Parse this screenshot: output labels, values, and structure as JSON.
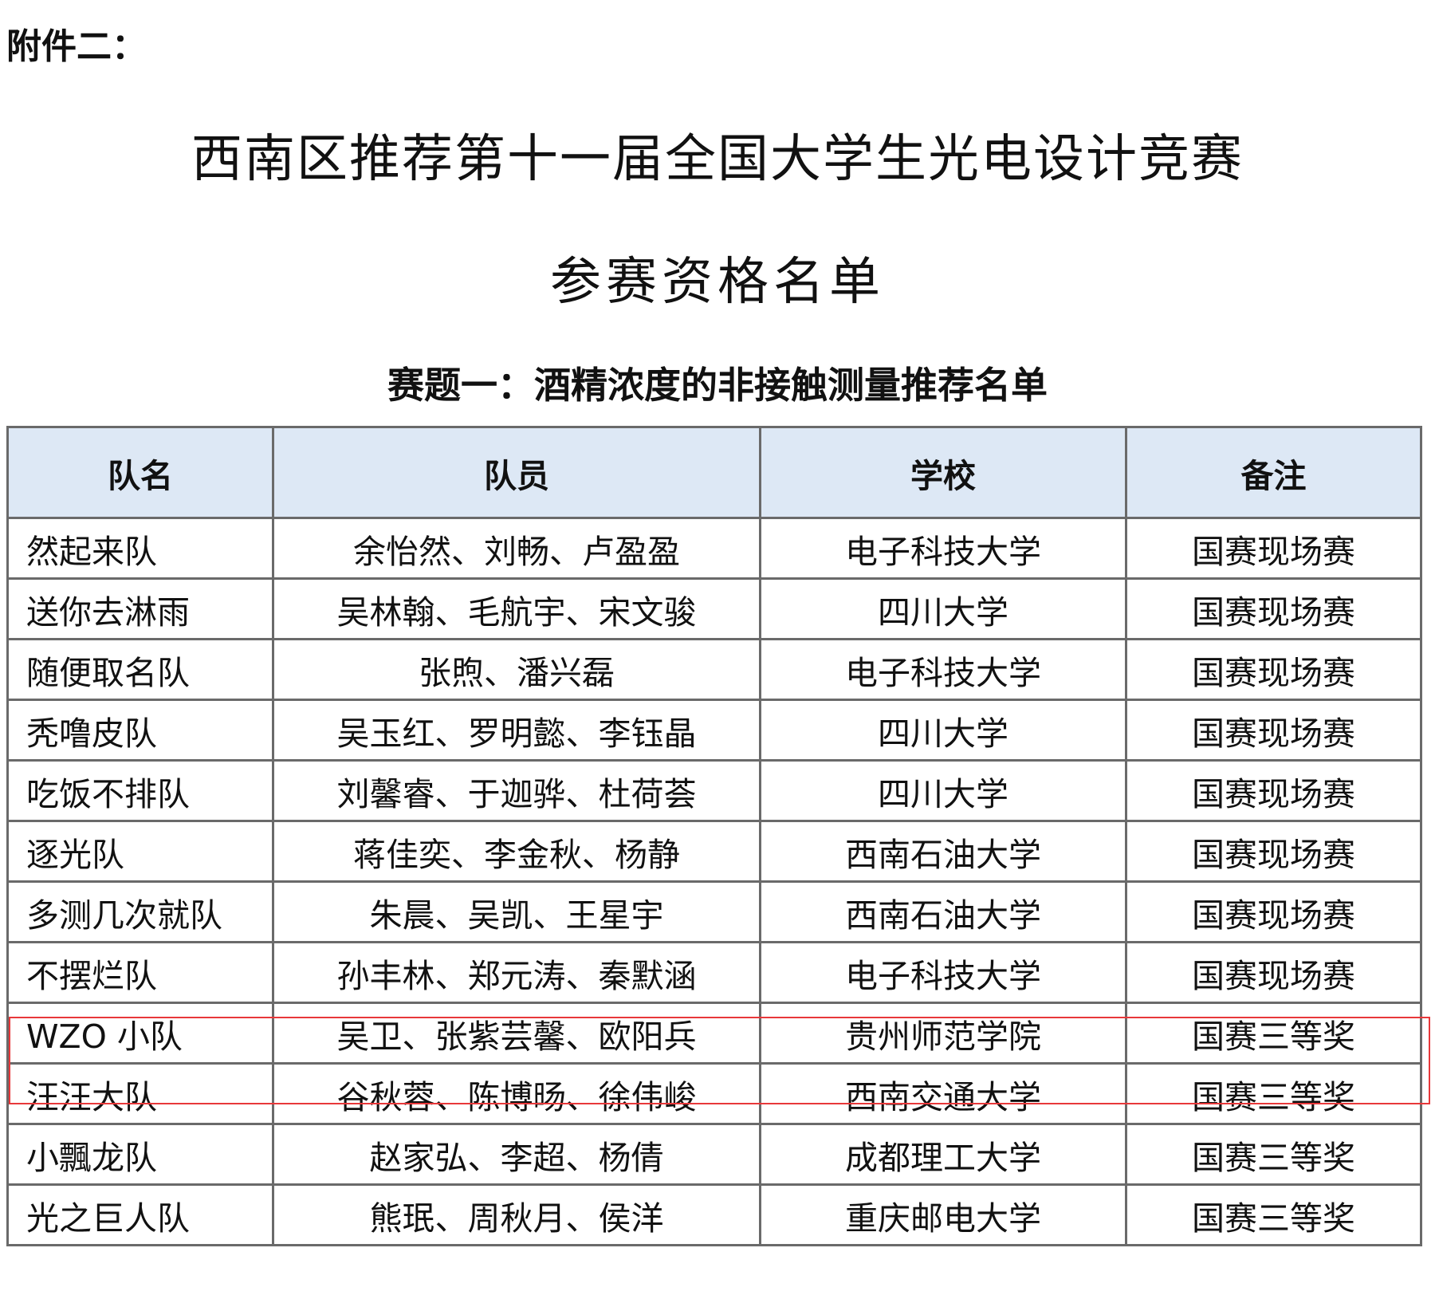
{
  "attachment_label": "附件二：",
  "title_line1": "西南区推荐第十一届全国大学生光电设计竞赛",
  "title_line2": "参赛资格名单",
  "subtitle": "赛题一：酒精浓度的非接触测量推荐名单",
  "table": {
    "headers": [
      "队名",
      "队员",
      "学校",
      "备注"
    ],
    "rows": [
      [
        "然起来队",
        "余怡然、刘畅、卢盈盈",
        "电子科技大学",
        "国赛现场赛"
      ],
      [
        "送你去淋雨",
        "吴林翰、毛航宇、宋文骏",
        "四川大学",
        "国赛现场赛"
      ],
      [
        "随便取名队",
        "张煦、潘兴磊",
        "电子科技大学",
        "国赛现场赛"
      ],
      [
        "秃噜皮队",
        "吴玉红、罗明懿、李钰晶",
        "四川大学",
        "国赛现场赛"
      ],
      [
        "吃饭不排队",
        "刘馨睿、于迦骅、杜荷荟",
        "四川大学",
        "国赛现场赛"
      ],
      [
        "逐光队",
        "蒋佳奕、李金秋、杨静",
        "西南石油大学",
        "国赛现场赛"
      ],
      [
        "多测几次就队",
        "朱晨、吴凯、王星宇",
        "西南石油大学",
        "国赛现场赛"
      ],
      [
        "不摆烂队",
        "孙丰林、郑元涛、秦默涵",
        "电子科技大学",
        "国赛现场赛"
      ],
      [
        "WZO 小队",
        "吴卫、张紫芸馨、欧阳兵",
        "贵州师范学院",
        "国赛三等奖"
      ],
      [
        "汪汪大队",
        "谷秋蓉、陈博旸、徐伟峻",
        "西南交通大学",
        "国赛三等奖"
      ],
      [
        "小飄龙队",
        "赵家弘、李超、杨倩",
        "成都理工大学",
        "国赛三等奖"
      ],
      [
        "光之巨人队",
        "熊珉、周秋月、侯洋",
        "重庆邮电大学",
        "国赛三等奖"
      ]
    ],
    "highlighted_row": 8,
    "highlight_color": "#e8383a",
    "header_bg": "#dde8f5"
  }
}
